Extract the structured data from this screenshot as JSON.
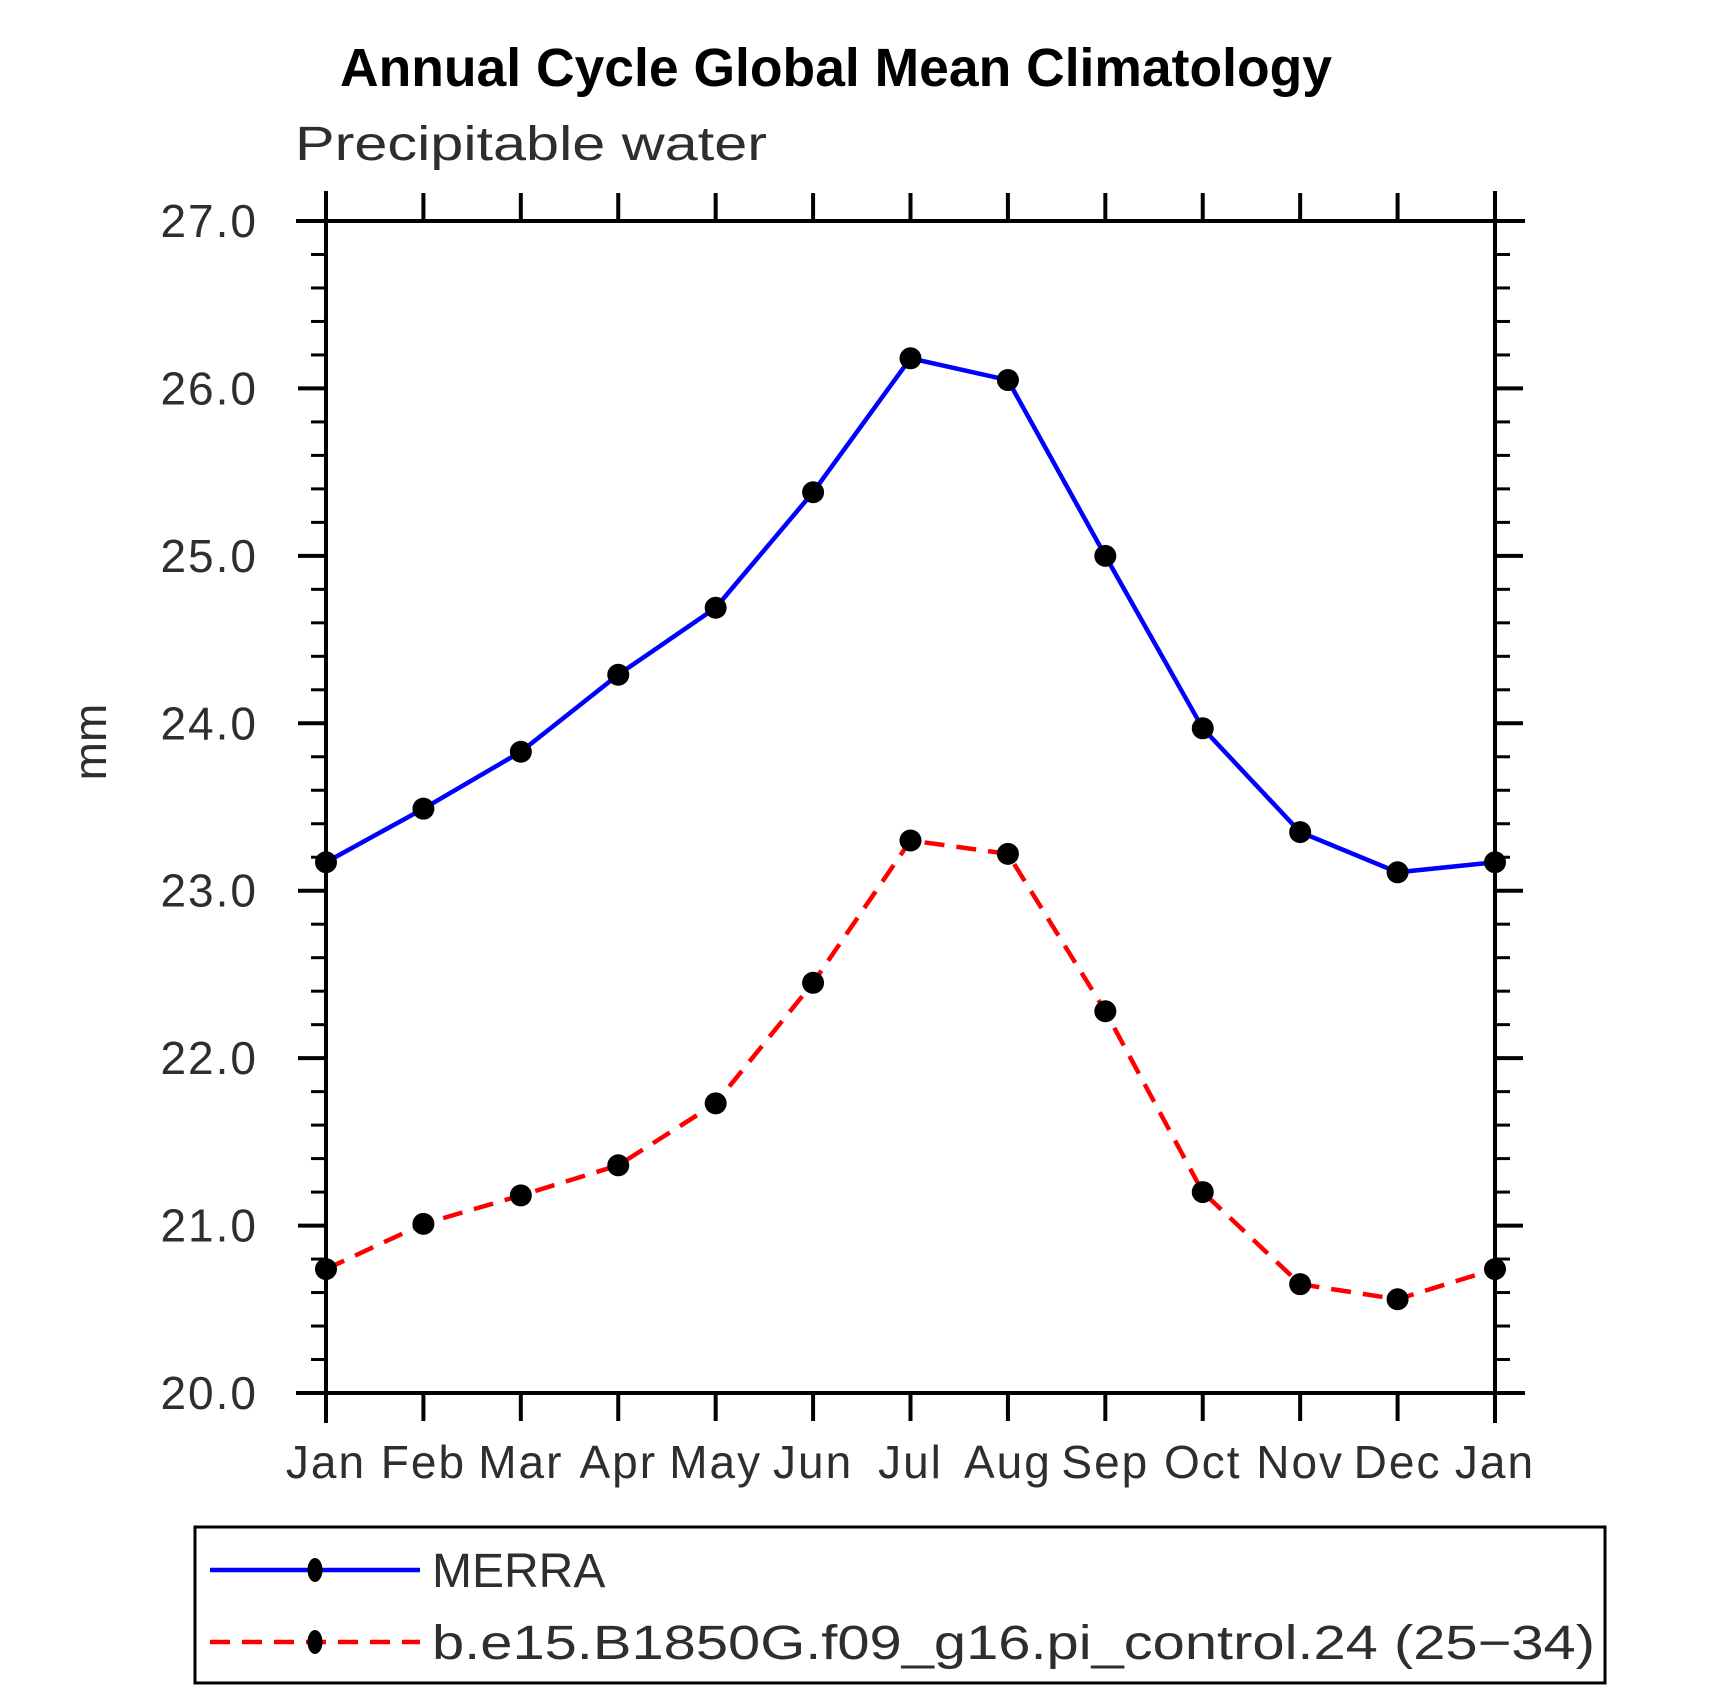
{
  "title": "Annual Cycle Global Mean Climatology",
  "subtitle": "Precipitable water",
  "ylabel": "mm",
  "colors": {
    "merra_line": "#0000ff",
    "model_line": "#ff0000",
    "marker": "#000000",
    "axis": "#000000"
  },
  "legend": {
    "items": [
      {
        "label": "MERRA",
        "color": "#0000ff",
        "style": "solid",
        "marker": "filled-circle"
      },
      {
        "label": "b.e15.B1850G.f09_g16.pi_control.24 (25−34)",
        "color": "#ff0000",
        "style": "dashed",
        "marker": "filled-circle"
      }
    ]
  },
  "chart_data": {
    "type": "line",
    "title": "Annual Cycle Global Mean Climatology",
    "subtitle": "Precipitable water",
    "xlabel": "",
    "ylabel": "mm",
    "categories": [
      "Jan",
      "Feb",
      "Mar",
      "Apr",
      "May",
      "Jun",
      "Jul",
      "Aug",
      "Sep",
      "Oct",
      "Nov",
      "Dec",
      "Jan"
    ],
    "series": [
      {
        "name": "MERRA",
        "color": "#0000ff",
        "line_style": "solid",
        "marker": "filled-circle",
        "marker_color": "#000000",
        "values": [
          23.17,
          23.49,
          23.83,
          24.29,
          24.69,
          25.38,
          26.18,
          26.05,
          25.0,
          23.97,
          23.35,
          23.11,
          23.17
        ]
      },
      {
        "name": "b.e15.B1850G.f09_g16.pi_control.24 (25−34)",
        "color": "#ff0000",
        "line_style": "dashed",
        "marker": "filled-circle",
        "marker_color": "#000000",
        "values": [
          20.74,
          21.01,
          21.18,
          21.36,
          21.73,
          22.45,
          23.3,
          23.22,
          22.28,
          21.2,
          20.65,
          20.56,
          20.74
        ]
      }
    ],
    "ylim": [
      20.0,
      27.0
    ],
    "ytick_interval": 1.0,
    "yminor_interval": 0.2,
    "ytick_labels": [
      "20.0",
      "21.0",
      "22.0",
      "23.0",
      "24.0",
      "25.0",
      "26.0",
      "27.0"
    ],
    "grid": false,
    "legend_position": "bottom-left-box"
  }
}
